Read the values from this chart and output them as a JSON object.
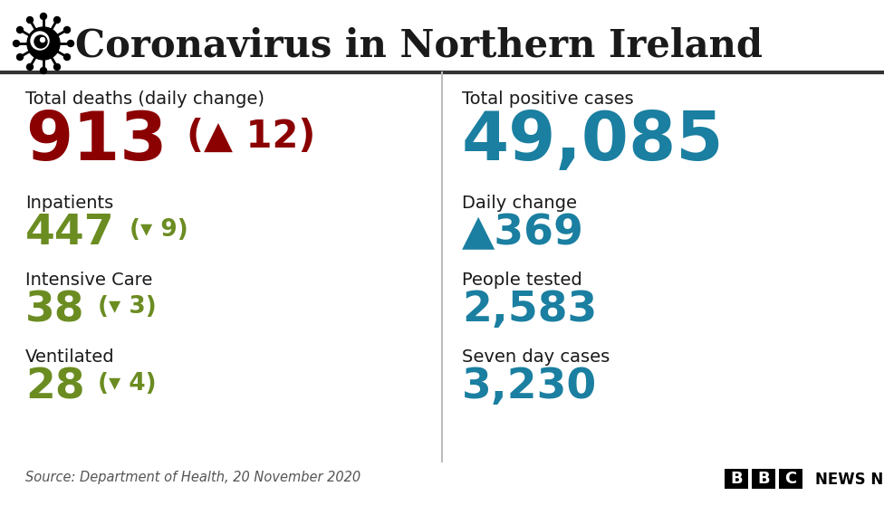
{
  "title": "Coronavirus in Northern Ireland",
  "bg_color": "#ffffff",
  "title_color": "#1a1a1a",
  "divider_color": "#333333",
  "left_panel": {
    "label1": "Total deaths (daily change)",
    "value1": "913",
    "change1": "(▲ 12)",
    "value1_color": "#8b0000",
    "change1_color": "#8b0000",
    "label2": "Inpatients",
    "value2": "447",
    "change2": "(▾ 9)",
    "value2_color": "#6b8c21",
    "change2_color": "#6b8c21",
    "label3": "Intensive Care",
    "value3": "38",
    "change3": "(▾ 3)",
    "value3_color": "#6b8c21",
    "change3_color": "#6b8c21",
    "label4": "Ventilated",
    "value4": "28",
    "change4": "(▾ 4)",
    "value4_color": "#6b8c21",
    "change4_color": "#6b8c21"
  },
  "right_panel": {
    "label1": "Total positive cases",
    "value1": "49,085",
    "value1_color": "#1a7fa0",
    "label2": "Daily change",
    "value2": "▲369",
    "value2_color": "#1a7fa0",
    "label3": "People tested",
    "value3": "2,583",
    "value3_color": "#1a7fa0",
    "label4": "Seven day cases",
    "value4": "3,230",
    "value4_color": "#1a7fa0"
  },
  "source_text": "Source: Department of Health, 20 November 2020",
  "label_color": "#1a1a1a",
  "label_fontsize": 14,
  "big_fontsize": 54,
  "medium_fontsize": 34,
  "change_fontsize_big": 30,
  "change_fontsize_med": 19
}
